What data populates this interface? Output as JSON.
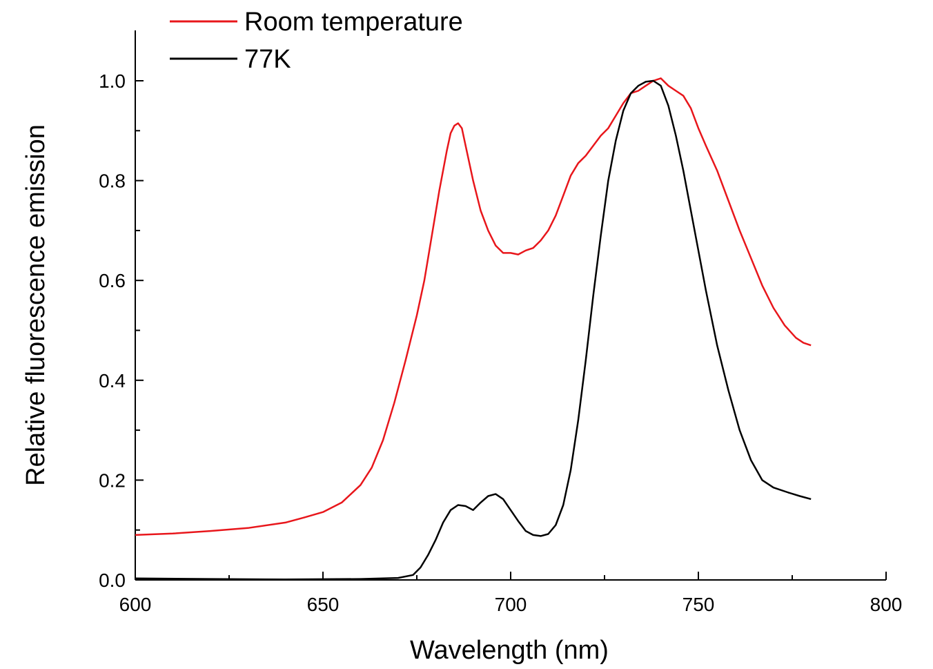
{
  "chart_data": {
    "type": "line",
    "title": "",
    "xlabel": "Wavelength (nm)",
    "ylabel": "Relative fluorescence emission",
    "xlim": [
      600,
      800
    ],
    "ylim": [
      0.0,
      1.0
    ],
    "x_ticks": [
      "600",
      "650",
      "700",
      "750",
      "800"
    ],
    "y_ticks": [
      "0.0",
      "0.2",
      "0.4",
      "0.6",
      "0.8",
      "1.0"
    ],
    "grid": false,
    "legend_position": "top-left",
    "series": [
      {
        "name": "Room temperature",
        "color": "#e8161b",
        "points": [
          [
            600,
            0.09
          ],
          [
            610,
            0.093
          ],
          [
            620,
            0.098
          ],
          [
            630,
            0.104
          ],
          [
            640,
            0.115
          ],
          [
            645,
            0.125
          ],
          [
            650,
            0.136
          ],
          [
            655,
            0.155
          ],
          [
            660,
            0.19
          ],
          [
            663,
            0.225
          ],
          [
            666,
            0.28
          ],
          [
            669,
            0.355
          ],
          [
            672,
            0.44
          ],
          [
            675,
            0.53
          ],
          [
            677,
            0.6
          ],
          [
            679,
            0.69
          ],
          [
            681,
            0.78
          ],
          [
            683,
            0.86
          ],
          [
            684,
            0.895
          ],
          [
            685,
            0.91
          ],
          [
            686,
            0.915
          ],
          [
            687,
            0.905
          ],
          [
            688,
            0.87
          ],
          [
            690,
            0.8
          ],
          [
            692,
            0.74
          ],
          [
            694,
            0.7
          ],
          [
            696,
            0.67
          ],
          [
            698,
            0.655
          ],
          [
            700,
            0.655
          ],
          [
            702,
            0.652
          ],
          [
            704,
            0.66
          ],
          [
            706,
            0.665
          ],
          [
            708,
            0.68
          ],
          [
            710,
            0.7
          ],
          [
            712,
            0.73
          ],
          [
            714,
            0.77
          ],
          [
            716,
            0.81
          ],
          [
            718,
            0.835
          ],
          [
            720,
            0.85
          ],
          [
            722,
            0.87
          ],
          [
            724,
            0.89
          ],
          [
            726,
            0.905
          ],
          [
            728,
            0.93
          ],
          [
            730,
            0.955
          ],
          [
            732,
            0.975
          ],
          [
            734,
            0.98
          ],
          [
            736,
            0.99
          ],
          [
            738,
            1.0
          ],
          [
            740,
            1.005
          ],
          [
            742,
            0.99
          ],
          [
            744,
            0.98
          ],
          [
            746,
            0.97
          ],
          [
            748,
            0.945
          ],
          [
            750,
            0.905
          ],
          [
            752,
            0.87
          ],
          [
            755,
            0.82
          ],
          [
            758,
            0.76
          ],
          [
            761,
            0.7
          ],
          [
            764,
            0.645
          ],
          [
            767,
            0.59
          ],
          [
            770,
            0.545
          ],
          [
            773,
            0.51
          ],
          [
            776,
            0.485
          ],
          [
            778,
            0.475
          ],
          [
            780,
            0.47
          ]
        ]
      },
      {
        "name": "77K",
        "color": "#000000",
        "points": [
          [
            600,
            0.003
          ],
          [
            620,
            0.002
          ],
          [
            640,
            0.001
          ],
          [
            660,
            0.002
          ],
          [
            670,
            0.004
          ],
          [
            674,
            0.01
          ],
          [
            676,
            0.025
          ],
          [
            678,
            0.05
          ],
          [
            680,
            0.08
          ],
          [
            682,
            0.115
          ],
          [
            684,
            0.14
          ],
          [
            686,
            0.15
          ],
          [
            688,
            0.148
          ],
          [
            690,
            0.14
          ],
          [
            692,
            0.155
          ],
          [
            694,
            0.168
          ],
          [
            696,
            0.172
          ],
          [
            698,
            0.162
          ],
          [
            700,
            0.14
          ],
          [
            702,
            0.118
          ],
          [
            704,
            0.098
          ],
          [
            706,
            0.09
          ],
          [
            708,
            0.088
          ],
          [
            710,
            0.092
          ],
          [
            712,
            0.11
          ],
          [
            714,
            0.15
          ],
          [
            716,
            0.22
          ],
          [
            718,
            0.32
          ],
          [
            720,
            0.44
          ],
          [
            722,
            0.57
          ],
          [
            724,
            0.69
          ],
          [
            726,
            0.8
          ],
          [
            728,
            0.88
          ],
          [
            730,
            0.94
          ],
          [
            732,
            0.975
          ],
          [
            734,
            0.99
          ],
          [
            736,
            0.998
          ],
          [
            738,
            1.0
          ],
          [
            740,
            0.99
          ],
          [
            742,
            0.95
          ],
          [
            744,
            0.89
          ],
          [
            746,
            0.82
          ],
          [
            748,
            0.74
          ],
          [
            750,
            0.66
          ],
          [
            752,
            0.58
          ],
          [
            755,
            0.47
          ],
          [
            758,
            0.38
          ],
          [
            761,
            0.3
          ],
          [
            764,
            0.24
          ],
          [
            767,
            0.2
          ],
          [
            770,
            0.185
          ],
          [
            774,
            0.175
          ],
          [
            777,
            0.168
          ],
          [
            780,
            0.162
          ]
        ]
      }
    ]
  }
}
